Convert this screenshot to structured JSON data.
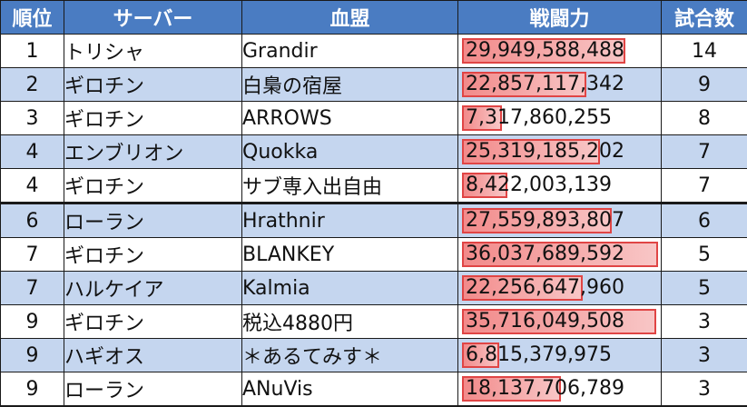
{
  "table": {
    "headers": {
      "rank": "順位",
      "server": "サーバー",
      "guild": "血盟",
      "power": "戦闘力",
      "matches": "試合数"
    },
    "power_bar_max": 36037689592,
    "rows": [
      {
        "rank": "1",
        "server": "トリシャ",
        "guild": "Grandir",
        "power": "29,949,588,488",
        "power_value": 29949588488,
        "matches": "14"
      },
      {
        "rank": "2",
        "server": "ギロチン",
        "guild": "白梟の宿屋",
        "power": "22,857,117,342",
        "power_value": 22857117342,
        "matches": "9"
      },
      {
        "rank": "3",
        "server": "ギロチン",
        "guild": "ARROWS",
        "power": "7,317,860,255",
        "power_value": 7317860255,
        "matches": "8"
      },
      {
        "rank": "4",
        "server": "エンブリオン",
        "guild": "Quokka",
        "power": "25,319,185,202",
        "power_value": 25319185202,
        "matches": "7"
      },
      {
        "rank": "4",
        "server": "ギロチン",
        "guild": "サブ専入出自由",
        "power": "8,422,003,139",
        "power_value": 8422003139,
        "matches": "7"
      },
      {
        "rank": "6",
        "server": "ローラン",
        "guild": "Hrathnir",
        "power": "27,559,893,807",
        "power_value": 27559893807,
        "matches": "6"
      },
      {
        "rank": "7",
        "server": "ギロチン",
        "guild": "BLANKEY",
        "power": "36,037,689,592",
        "power_value": 36037689592,
        "matches": "5"
      },
      {
        "rank": "7",
        "server": "ハルケイア",
        "guild": "Kalmia",
        "power": "22,256,647,960",
        "power_value": 22256647960,
        "matches": "5"
      },
      {
        "rank": "9",
        "server": "ギロチン",
        "guild": "税込4880円",
        "power": "35,716,049,508",
        "power_value": 35716049508,
        "matches": "3"
      },
      {
        "rank": "9",
        "server": "ハギオス",
        "guild": "＊あるてみす＊",
        "power": "6,815,379,975",
        "power_value": 6815379975,
        "matches": "3"
      },
      {
        "rank": "9",
        "server": "ローラン",
        "guild": "ANuVis",
        "power": "18,137,706,789",
        "power_value": 18137706789,
        "matches": "3"
      }
    ]
  }
}
